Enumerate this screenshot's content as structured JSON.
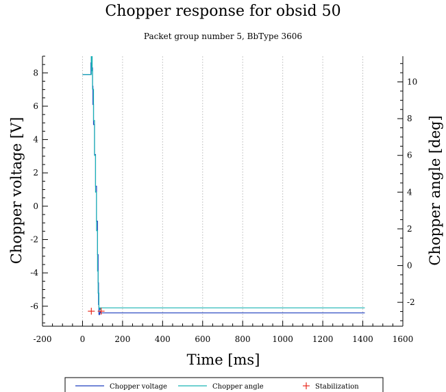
{
  "chart_data": {
    "type": "line",
    "title": "Chopper response for obsid 50",
    "subtitle": "Packet group number 5, BbType 3606",
    "xlabel": "Time [ms]",
    "ylabel_left": "Chopper voltage [V]",
    "ylabel_right": "Chopper angle [deg]",
    "xlim": [
      -200,
      1600
    ],
    "ylim_left": [
      -7.2,
      9
    ],
    "ylim_right": [
      -3.3,
      11.4
    ],
    "x_ticks": [
      "-200",
      "0",
      "200",
      "400",
      "600",
      "800",
      "1000",
      "1200",
      "1400",
      "1600"
    ],
    "y_left_ticks": [
      "8",
      "6",
      "4",
      "2",
      "0",
      "-2",
      "-4",
      "-6"
    ],
    "y_right_ticks": [
      "10",
      "8",
      "6",
      "4",
      "2",
      "0",
      "-2"
    ],
    "grid": "vertical dotted at x ticks",
    "legend_position": "bottom",
    "series": [
      {
        "name": "Chopper voltage",
        "color": "#1f3fbf",
        "axis": "left",
        "x": [
          0,
          40,
          42,
          44,
          46,
          48,
          50,
          52,
          55,
          60,
          65,
          70,
          75,
          78,
          80,
          82,
          84,
          86,
          88,
          90,
          95,
          100,
          200,
          1410
        ],
        "y": [
          7.9,
          7.9,
          8.6,
          9.0,
          9.0,
          8.3,
          7.2,
          6.1,
          4.9,
          3.1,
          1.2,
          -0.9,
          -2.9,
          -4.6,
          -5.9,
          -6.5,
          -6.5,
          -6.4,
          -6.3,
          -6.4,
          -6.4,
          -6.4,
          -6.4,
          -6.4
        ]
      },
      {
        "name": "Chopper angle",
        "color": "#17b3b3",
        "axis": "right",
        "x": [
          0,
          40,
          44,
          46,
          48,
          50,
          55,
          60,
          65,
          70,
          75,
          78,
          82,
          86,
          90,
          100,
          200,
          1410
        ],
        "y": [
          10.4,
          10.4,
          11.4,
          11.4,
          10.6,
          9.6,
          7.9,
          6.0,
          4.0,
          1.9,
          -0.3,
          -1.5,
          -2.3,
          -2.4,
          -2.3,
          -2.3,
          -2.3,
          -2.3
        ]
      }
    ],
    "stabilization": {
      "name": "Stabilization",
      "color": "#e8281c",
      "points": [
        {
          "x": 44,
          "y": -6.3
        },
        {
          "x": 93,
          "y": -6.3
        }
      ]
    },
    "legend": [
      "Chopper voltage",
      "Chopper angle",
      "Stabilization"
    ]
  }
}
